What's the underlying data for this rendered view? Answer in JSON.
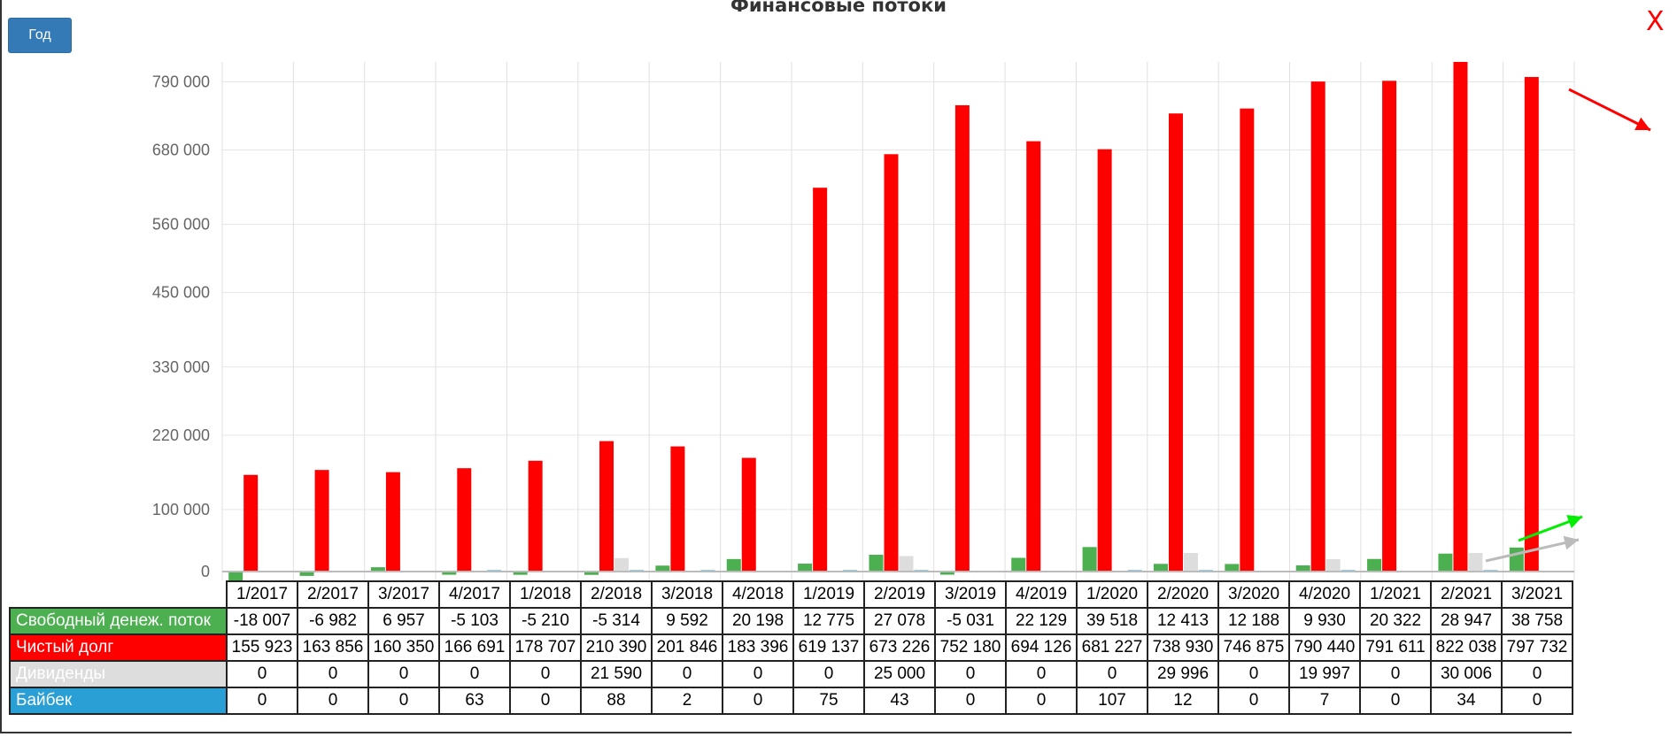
{
  "header": {
    "title": "Финансовые потоки",
    "year_button": "Год",
    "close_label": "X"
  },
  "colors": {
    "free_cash_flow": "#4caf50",
    "net_debt": "#ff0000",
    "dividends": "#dddddd",
    "buyback": "#2a9fd6"
  },
  "chart_data": {
    "type": "bar",
    "title": "Финансовые потоки",
    "categories": [
      "1/2017",
      "2/2017",
      "3/2017",
      "4/2017",
      "1/2018",
      "2/2018",
      "3/2018",
      "4/2018",
      "1/2019",
      "2/2019",
      "3/2019",
      "4/2019",
      "1/2020",
      "2/2020",
      "3/2020",
      "4/2020",
      "1/2021",
      "2/2021",
      "3/2021"
    ],
    "series": [
      {
        "name": "Свободный денеж. поток",
        "color": "#4caf50",
        "values": [
          -18007,
          -6982,
          6957,
          -5103,
          -5210,
          -5314,
          9592,
          20198,
          12775,
          27078,
          -5031,
          22129,
          39518,
          12413,
          12188,
          9930,
          20322,
          28947,
          38758
        ],
        "labels": [
          "-18 007",
          "-6 982",
          "6 957",
          "-5 103",
          "-5 210",
          "-5 314",
          "9 592",
          "20 198",
          "12 775",
          "27 078",
          "-5 031",
          "22 129",
          "39 518",
          "12 413",
          "12 188",
          "9 930",
          "20 322",
          "28 947",
          "38 758"
        ]
      },
      {
        "name": "Чистый долг",
        "color": "#ff0000",
        "values": [
          155923,
          163856,
          160350,
          166691,
          178707,
          210390,
          201846,
          183396,
          619137,
          673226,
          752180,
          694126,
          681227,
          738930,
          746875,
          790440,
          791611,
          822038,
          797732
        ],
        "labels": [
          "155 923",
          "163 856",
          "160 350",
          "166 691",
          "178 707",
          "210 390",
          "201 846",
          "183 396",
          "619 137",
          "673 226",
          "752 180",
          "694 126",
          "681 227",
          "738 930",
          "746 875",
          "790 440",
          "791 611",
          "822 038",
          "797 732"
        ]
      },
      {
        "name": "Дивиденды",
        "color": "#dddddd",
        "values": [
          0,
          0,
          0,
          0,
          0,
          21590,
          0,
          0,
          0,
          25000,
          0,
          0,
          0,
          29996,
          0,
          19997,
          0,
          30006,
          0
        ],
        "labels": [
          "0",
          "0",
          "0",
          "0",
          "0",
          "21 590",
          "0",
          "0",
          "0",
          "25 000",
          "0",
          "0",
          "0",
          "29 996",
          "0",
          "19 997",
          "0",
          "30 006",
          "0"
        ]
      },
      {
        "name": "Байбек",
        "color": "#2a9fd6",
        "values": [
          0,
          0,
          0,
          63,
          0,
          88,
          2,
          0,
          75,
          43,
          0,
          0,
          107,
          12,
          0,
          7,
          0,
          34,
          0
        ],
        "labels": [
          "0",
          "0",
          "0",
          "63",
          "0",
          "88",
          "2",
          "0",
          "75",
          "43",
          "0",
          "0",
          "107",
          "12",
          "0",
          "7",
          "0",
          "34",
          "0"
        ]
      }
    ],
    "yticks": [
      "0",
      "100 000",
      "220 000",
      "330 000",
      "450 000",
      "560 000",
      "680 000",
      "790 000"
    ],
    "ylim": [
      -18007,
      822038
    ],
    "grid": true,
    "trend_arrows": [
      {
        "series": "Чистый долг",
        "direction": "down",
        "color": "#ff0000"
      },
      {
        "series": "Свободный денеж. поток",
        "direction": "up",
        "color": "#00ee00"
      },
      {
        "series": "Дивиденды",
        "direction": "up",
        "color": "#bbbbbb"
      }
    ]
  }
}
